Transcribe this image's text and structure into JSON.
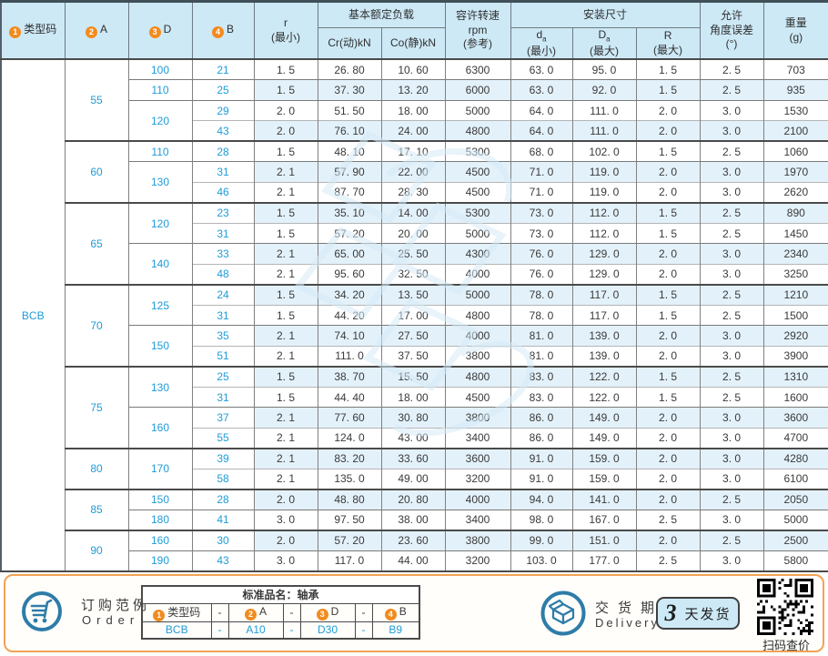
{
  "colors": {
    "accent_blue_text": "#1f9cd8",
    "header_bg": "#cde9f6",
    "alt_row_bg": "#e3f1fa",
    "circle_orange": "#f28b1e",
    "footer_border_orange": "#f2a254",
    "icon_blue": "#2e7ca8",
    "pill_bg": "#cde9f6"
  },
  "header": {
    "n1": "1",
    "t1": "类型码",
    "n2": "2",
    "t2": "A",
    "n3": "3",
    "t3": "D",
    "n4": "4",
    "t4": "B",
    "r1": "r",
    "r2": "(最小)",
    "load": "基本额定负载",
    "cr": "Cr(动)kN",
    "co": "Co(静)kN",
    "sp1": "容许转速",
    "sp2": "rpm",
    "sp3": "(参考)",
    "mount": "安装尺寸",
    "da1": "d",
    "daSub": "a",
    "da2": "(最小)",
    "Da1": "D",
    "DaSub": "a",
    "Da2": "(最大)",
    "R1": "R",
    "R2": "(最大)",
    "an1": "允许",
    "an2": "角度误差",
    "an3": "(°)",
    "w1": "重量",
    "w2": "(g)"
  },
  "table": {
    "type_code": "BCB",
    "groups": [
      {
        "a": "55",
        "subgroups": [
          {
            "d": "100",
            "rows": [
              {
                "b": "21",
                "r": "1. 5",
                "cr": "26. 80",
                "co": "10. 60",
                "rpm": "6300",
                "da": "63. 0",
                "Da": "95. 0",
                "R": "1. 5",
                "ang": "2. 5",
                "wt": "703"
              }
            ]
          },
          {
            "d": "110",
            "rows": [
              {
                "b": "25",
                "r": "1. 5",
                "cr": "37. 30",
                "co": "13. 20",
                "rpm": "6000",
                "da": "63. 0",
                "Da": "92. 0",
                "R": "1. 5",
                "ang": "2. 5",
                "wt": "935"
              }
            ]
          },
          {
            "d": "120",
            "rows": [
              {
                "b": "29",
                "r": "2. 0",
                "cr": "51. 50",
                "co": "18. 00",
                "rpm": "5000",
                "da": "64. 0",
                "Da": "111. 0",
                "R": "2. 0",
                "ang": "3. 0",
                "wt": "1530"
              },
              {
                "b": "43",
                "r": "2. 0",
                "cr": "76. 10",
                "co": "24. 00",
                "rpm": "4800",
                "da": "64. 0",
                "Da": "111. 0",
                "R": "2. 0",
                "ang": "3. 0",
                "wt": "2100"
              }
            ]
          }
        ]
      },
      {
        "a": "60",
        "subgroups": [
          {
            "d": "110",
            "rows": [
              {
                "b": "28",
                "r": "1. 5",
                "cr": "48. 10",
                "co": "17. 10",
                "rpm": "5300",
                "da": "68. 0",
                "Da": "102. 0",
                "R": "1. 5",
                "ang": "2. 5",
                "wt": "1060"
              }
            ]
          },
          {
            "d": "130",
            "rows": [
              {
                "b": "31",
                "r": "2. 1",
                "cr": "57. 90",
                "co": "22. 00",
                "rpm": "4500",
                "da": "71. 0",
                "Da": "119. 0",
                "R": "2. 0",
                "ang": "3. 0",
                "wt": "1970"
              },
              {
                "b": "46",
                "r": "2. 1",
                "cr": "87. 70",
                "co": "28. 30",
                "rpm": "4500",
                "da": "71. 0",
                "Da": "119. 0",
                "R": "2. 0",
                "ang": "3. 0",
                "wt": "2620"
              }
            ]
          }
        ]
      },
      {
        "a": "65",
        "subgroups": [
          {
            "d": "120",
            "rows": [
              {
                "b": "23",
                "r": "1. 5",
                "cr": "35. 10",
                "co": "14. 00",
                "rpm": "5300",
                "da": "73. 0",
                "Da": "112. 0",
                "R": "1. 5",
                "ang": "2. 5",
                "wt": "890"
              },
              {
                "b": "31",
                "r": "1. 5",
                "cr": "57. 20",
                "co": "20. 00",
                "rpm": "5000",
                "da": "73. 0",
                "Da": "112. 0",
                "R": "1. 5",
                "ang": "2. 5",
                "wt": "1450"
              }
            ]
          },
          {
            "d": "140",
            "rows": [
              {
                "b": "33",
                "r": "2. 1",
                "cr": "65. 00",
                "co": "25. 50",
                "rpm": "4300",
                "da": "76. 0",
                "Da": "129. 0",
                "R": "2. 0",
                "ang": "3. 0",
                "wt": "2340"
              },
              {
                "b": "48",
                "r": "2. 1",
                "cr": "95. 60",
                "co": "32. 50",
                "rpm": "4000",
                "da": "76. 0",
                "Da": "129. 0",
                "R": "2. 0",
                "ang": "3. 0",
                "wt": "3250"
              }
            ]
          }
        ]
      },
      {
        "a": "70",
        "subgroups": [
          {
            "d": "125",
            "rows": [
              {
                "b": "24",
                "r": "1. 5",
                "cr": "34. 20",
                "co": "13. 50",
                "rpm": "5000",
                "da": "78. 0",
                "Da": "117. 0",
                "R": "1. 5",
                "ang": "2. 5",
                "wt": "1210"
              },
              {
                "b": "31",
                "r": "1. 5",
                "cr": "44. 20",
                "co": "17. 00",
                "rpm": "4800",
                "da": "78. 0",
                "Da": "117. 0",
                "R": "1. 5",
                "ang": "2. 5",
                "wt": "1500"
              }
            ]
          },
          {
            "d": "150",
            "rows": [
              {
                "b": "35",
                "r": "2. 1",
                "cr": "74. 10",
                "co": "27. 50",
                "rpm": "4000",
                "da": "81. 0",
                "Da": "139. 0",
                "R": "2. 0",
                "ang": "3. 0",
                "wt": "2920"
              },
              {
                "b": "51",
                "r": "2. 1",
                "cr": "111. 0",
                "co": "37. 50",
                "rpm": "3800",
                "da": "81. 0",
                "Da": "139. 0",
                "R": "2. 0",
                "ang": "3. 0",
                "wt": "3900"
              }
            ]
          }
        ]
      },
      {
        "a": "75",
        "subgroups": [
          {
            "d": "130",
            "rows": [
              {
                "b": "25",
                "r": "1. 5",
                "cr": "38. 70",
                "co": "15. 50",
                "rpm": "4800",
                "da": "83. 0",
                "Da": "122. 0",
                "R": "1. 5",
                "ang": "2. 5",
                "wt": "1310"
              },
              {
                "b": "31",
                "r": "1. 5",
                "cr": "44. 40",
                "co": "18. 00",
                "rpm": "4500",
                "da": "83. 0",
                "Da": "122. 0",
                "R": "1. 5",
                "ang": "2. 5",
                "wt": "1600"
              }
            ]
          },
          {
            "d": "160",
            "rows": [
              {
                "b": "37",
                "r": "2. 1",
                "cr": "77. 60",
                "co": "30. 80",
                "rpm": "3800",
                "da": "86. 0",
                "Da": "149. 0",
                "R": "2. 0",
                "ang": "3. 0",
                "wt": "3600"
              },
              {
                "b": "55",
                "r": "2. 1",
                "cr": "124. 0",
                "co": "43. 00",
                "rpm": "3400",
                "da": "86. 0",
                "Da": "149. 0",
                "R": "2. 0",
                "ang": "3. 0",
                "wt": "4700"
              }
            ]
          }
        ]
      },
      {
        "a": "80",
        "subgroups": [
          {
            "d": "170",
            "rows": [
              {
                "b": "39",
                "r": "2. 1",
                "cr": "83. 20",
                "co": "33. 60",
                "rpm": "3600",
                "da": "91. 0",
                "Da": "159. 0",
                "R": "2. 0",
                "ang": "3. 0",
                "wt": "4280"
              },
              {
                "b": "58",
                "r": "2. 1",
                "cr": "135. 0",
                "co": "49. 00",
                "rpm": "3200",
                "da": "91. 0",
                "Da": "159. 0",
                "R": "2. 0",
                "ang": "3. 0",
                "wt": "6100"
              }
            ]
          }
        ]
      },
      {
        "a": "85",
        "subgroups": [
          {
            "d": "150",
            "rows": [
              {
                "b": "28",
                "r": "2. 0",
                "cr": "48. 80",
                "co": "20. 80",
                "rpm": "4000",
                "da": "94. 0",
                "Da": "141. 0",
                "R": "2. 0",
                "ang": "2. 5",
                "wt": "2050"
              }
            ]
          },
          {
            "d": "180",
            "rows": [
              {
                "b": "41",
                "r": "3. 0",
                "cr": "97. 50",
                "co": "38. 00",
                "rpm": "3400",
                "da": "98. 0",
                "Da": "167. 0",
                "R": "2. 5",
                "ang": "3. 0",
                "wt": "5000"
              }
            ]
          }
        ]
      },
      {
        "a": "90",
        "subgroups": [
          {
            "d": "160",
            "rows": [
              {
                "b": "30",
                "r": "2. 0",
                "cr": "57. 20",
                "co": "23. 60",
                "rpm": "3800",
                "da": "99. 0",
                "Da": "151. 0",
                "R": "2. 0",
                "ang": "2. 5",
                "wt": "2500"
              }
            ]
          },
          {
            "d": "190",
            "rows": [
              {
                "b": "43",
                "r": "3. 0",
                "cr": "117. 0",
                "co": "44. 00",
                "rpm": "3200",
                "da": "103. 0",
                "Da": "177. 0",
                "R": "2. 5",
                "ang": "3. 0",
                "wt": "5800"
              }
            ]
          }
        ]
      }
    ]
  },
  "footer": {
    "order_cn": "订购范例",
    "order_en": "Order",
    "mini": {
      "title": "标准品名：轴承",
      "headers": [
        {
          "num": "1",
          "text": "类型码"
        },
        {
          "text": "-"
        },
        {
          "num": "2",
          "text": "A"
        },
        {
          "text": "-"
        },
        {
          "num": "3",
          "text": "D"
        },
        {
          "text": "-"
        },
        {
          "num": "4",
          "text": "B"
        }
      ],
      "values": [
        "BCB",
        "-",
        "A10",
        "-",
        "D30",
        "-",
        "B9"
      ]
    },
    "delivery_cn": "交货期",
    "delivery_en": "Delivery",
    "days_num": "3",
    "days_unit": "天发货",
    "qr_caption": "扫码查价"
  }
}
